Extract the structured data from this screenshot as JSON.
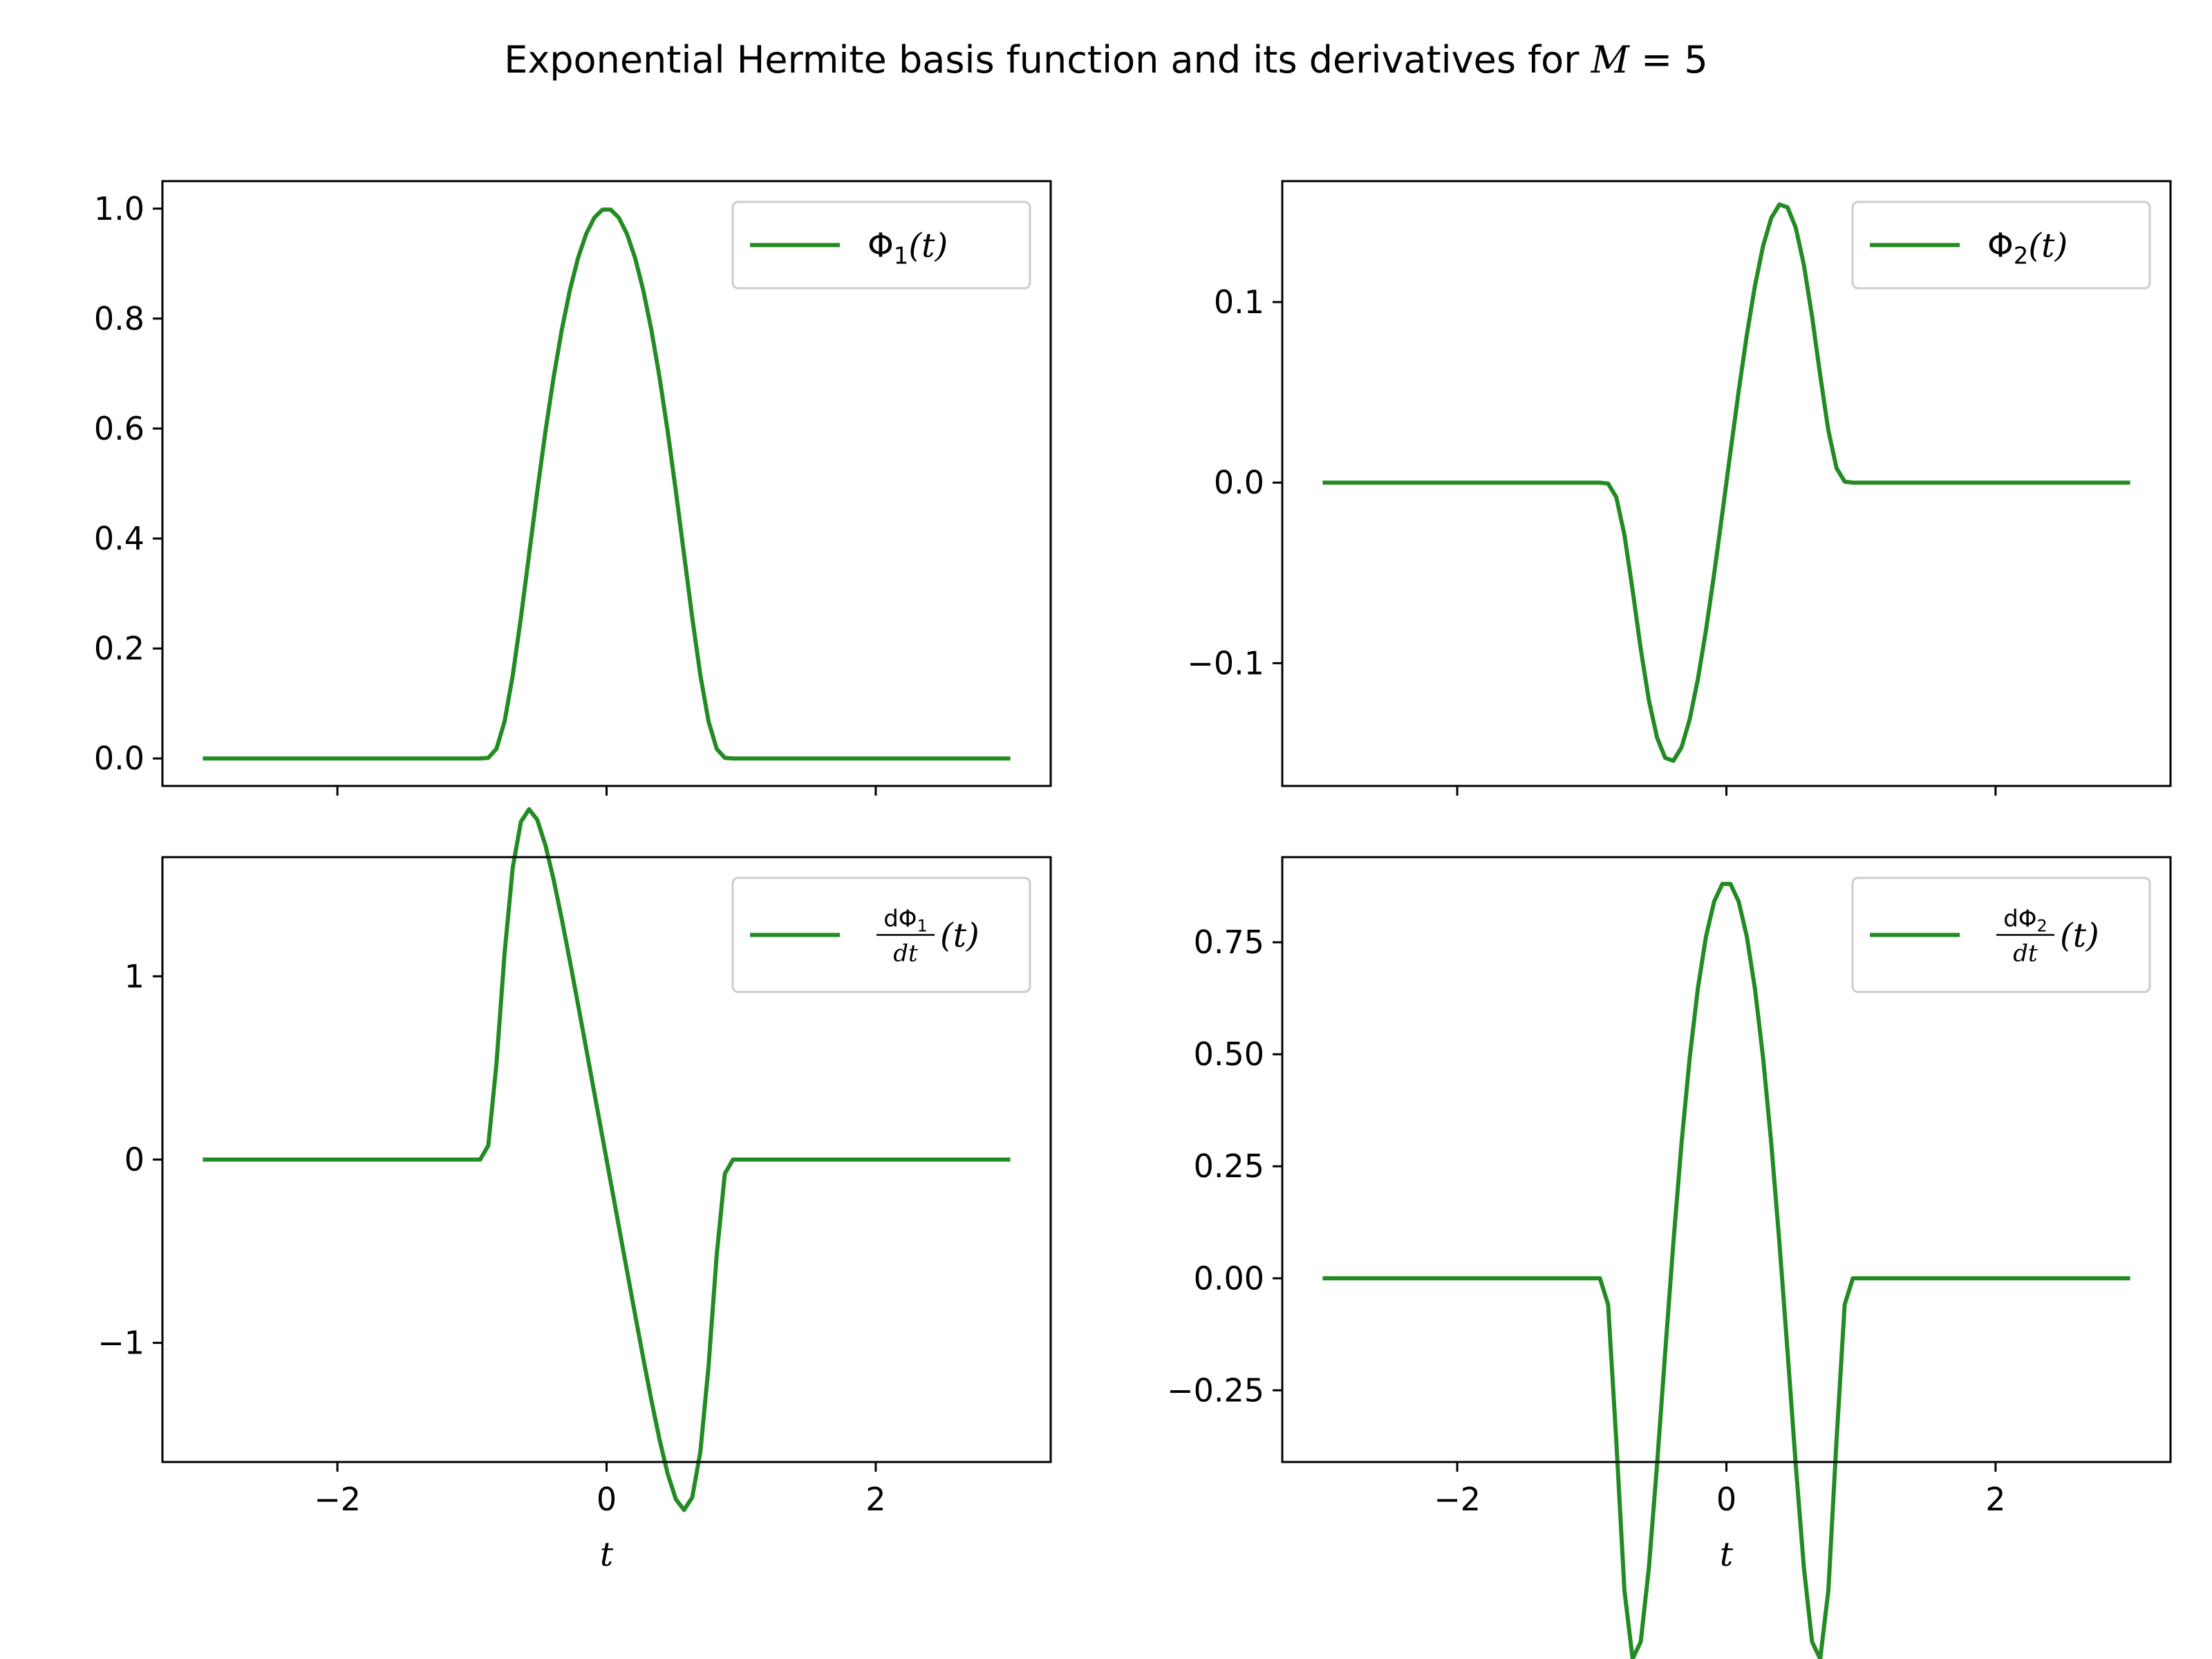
{
  "figure_title": {
    "text": "Exponential Hermite basis function and its derivatives for ",
    "math_lhs": "M",
    "math_rhs": " = 5"
  },
  "chart_data": [
    {
      "type": "line",
      "panel": "top-left",
      "function": "phi1",
      "legend": {
        "main": "Φ",
        "sub": "1",
        "tail": "(t)",
        "placement": "upper right"
      },
      "xlim": [
        -3.3,
        3.3
      ],
      "ylim": [
        -0.05,
        1.05
      ],
      "xticks": [
        -2,
        0,
        2
      ],
      "yticks": [
        0.0,
        0.2,
        0.4,
        0.6,
        0.8,
        1.0
      ],
      "ytick_labels": [
        "0.0",
        "0.2",
        "0.4",
        "0.6",
        "0.8",
        "1.0"
      ],
      "show_xtick_labels": false,
      "xlabel": ""
    },
    {
      "type": "line",
      "panel": "top-right",
      "function": "phi2",
      "legend": {
        "main": "Φ",
        "sub": "2",
        "tail": "(t)",
        "placement": "upper right"
      },
      "xlim": [
        -3.3,
        3.3
      ],
      "ylim": [
        -0.168,
        0.167
      ],
      "xticks": [
        -2,
        0,
        2
      ],
      "yticks": [
        -0.1,
        0.0,
        0.1
      ],
      "ytick_labels": [
        "−0.1",
        "0.0",
        "0.1"
      ],
      "show_xtick_labels": false,
      "xlabel": ""
    },
    {
      "type": "line",
      "panel": "bottom-left",
      "function": "dphi1",
      "legend": {
        "num": "dΦ",
        "numsub": "1",
        "den": "dt",
        "tail": "(t)",
        "placement": "upper right"
      },
      "xlim": [
        -3.3,
        3.3
      ],
      "ylim": [
        -1.65,
        1.65
      ],
      "xticks": [
        -2,
        0,
        2
      ],
      "xtick_labels": [
        "−2",
        "0",
        "2"
      ],
      "yticks": [
        -1,
        0,
        1
      ],
      "ytick_labels": [
        "−1",
        "0",
        "1"
      ],
      "show_xtick_labels": true,
      "xlabel": "t"
    },
    {
      "type": "line",
      "panel": "bottom-right",
      "function": "dphi2",
      "legend": {
        "num": "dΦ",
        "numsub": "2",
        "den": "dt",
        "tail": "(t)",
        "placement": "upper right"
      },
      "xlim": [
        -3.3,
        3.3
      ],
      "ylim": [
        -0.41,
        0.94
      ],
      "xticks": [
        -2,
        0,
        2
      ],
      "xtick_labels": [
        "−2",
        "0",
        "2"
      ],
      "yticks": [
        -0.25,
        0.0,
        0.25,
        0.5,
        0.75
      ],
      "ytick_labels": [
        "−0.25",
        "0.00",
        "0.25",
        "0.50",
        "0.75"
      ],
      "show_xtick_labels": true,
      "xlabel": "t"
    }
  ],
  "series_style": {
    "color": "#228b22"
  },
  "sampling": {
    "x_start": -3,
    "x_end": 3,
    "samples": 100
  }
}
